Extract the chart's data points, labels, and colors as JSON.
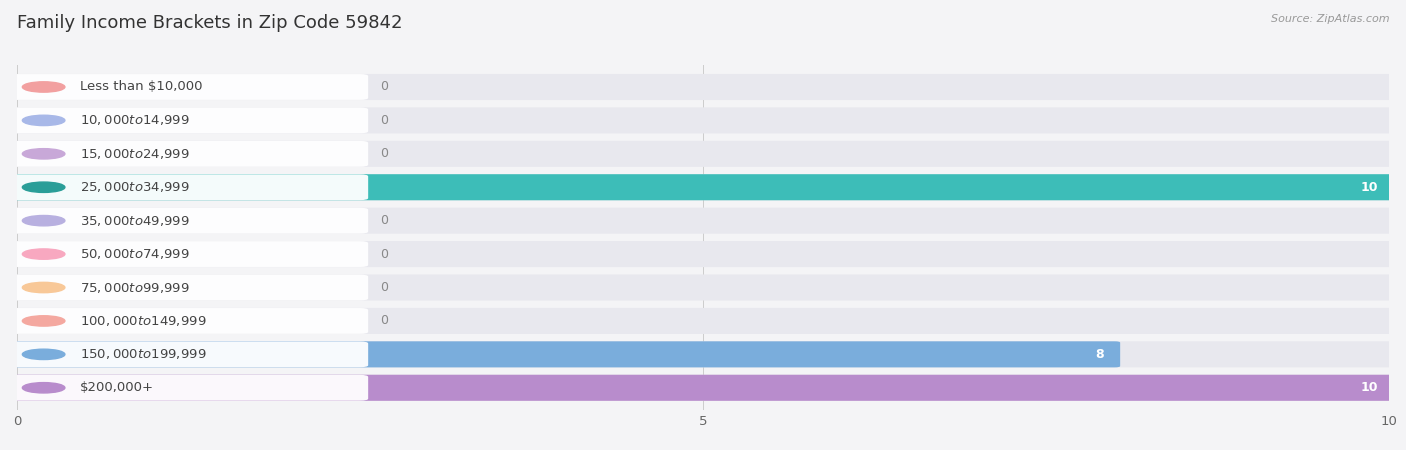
{
  "title": "Family Income Brackets in Zip Code 59842",
  "source": "Source: ZipAtlas.com",
  "categories": [
    "Less than $10,000",
    "$10,000 to $14,999",
    "$15,000 to $24,999",
    "$25,000 to $34,999",
    "$35,000 to $49,999",
    "$50,000 to $74,999",
    "$75,000 to $99,999",
    "$100,000 to $149,999",
    "$150,000 to $199,999",
    "$200,000+"
  ],
  "values": [
    0,
    0,
    0,
    10,
    0,
    0,
    0,
    0,
    8,
    10
  ],
  "bar_colors": [
    "#f2a0a0",
    "#a8b8e8",
    "#c8a8d8",
    "#3dbdb8",
    "#b8b0e0",
    "#f8a8c0",
    "#f8c898",
    "#f4a8a0",
    "#7aaddc",
    "#b88ccc"
  ],
  "dot_colors": [
    "#f2a0a0",
    "#a8b8e8",
    "#c8a8d8",
    "#2a9e98",
    "#b8b0e0",
    "#f8a8c0",
    "#f8c898",
    "#f4a8a0",
    "#7aaddc",
    "#b88ccc"
  ],
  "xlim": [
    0,
    10
  ],
  "xticks": [
    0,
    5,
    10
  ],
  "bg_color": "#f4f4f6",
  "bar_bg_color": "#e8e8ee",
  "title_fontsize": 13,
  "label_fontsize": 9.5,
  "value_fontsize": 9,
  "source_fontsize": 8
}
